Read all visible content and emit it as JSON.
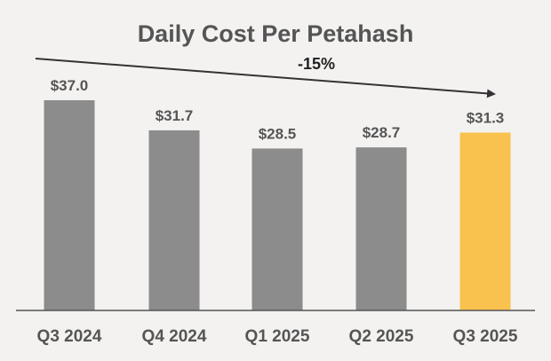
{
  "chart_data": {
    "type": "bar",
    "title": "Daily Cost Per Petahash",
    "categories": [
      "Q3 2024",
      "Q4 2024",
      "Q1 2025",
      "Q2 2025",
      "Q3 2025"
    ],
    "values": [
      37.0,
      31.7,
      28.5,
      28.7,
      31.3
    ],
    "value_labels": [
      "$37.0",
      "$31.7",
      "$28.5",
      "$28.7",
      "$31.3"
    ],
    "annotation": "-15%",
    "ylim": [
      0,
      37.0
    ],
    "grid": false,
    "legend": "none",
    "highlight_index": 4
  },
  "colors": {
    "background": "#f3f2f1",
    "bar": "#8c8c8c",
    "bar_highlight": "#f9c24e",
    "text": "#555555",
    "arrow": "#333333",
    "axis": "#555555"
  }
}
